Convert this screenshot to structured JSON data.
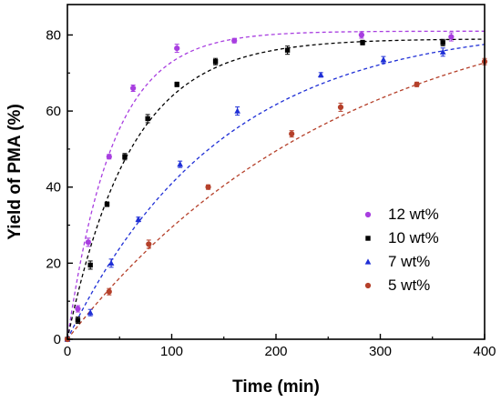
{
  "chart_data": {
    "type": "scatter",
    "xlabel": "Time (min)",
    "ylabel": "Yield of PMA (%)",
    "xlim": [
      0,
      400
    ],
    "ylim": [
      0,
      88
    ],
    "xticks": [
      "0",
      "100",
      "200",
      "300",
      "400"
    ],
    "yticks": [
      "0",
      "20",
      "40",
      "60",
      "80"
    ],
    "grid": false,
    "legend_position": "bottom-right",
    "series": [
      {
        "name": "12 wt%",
        "color": "#a83ee0",
        "marker": "circle",
        "x": [
          0,
          10,
          20,
          40,
          63,
          105,
          160,
          282,
          368
        ],
        "y": [
          0,
          8,
          25.5,
          48,
          66,
          76.5,
          78.5,
          80,
          79.5
        ],
        "fit_plateau": 81,
        "fit_rate": 0.023
      },
      {
        "name": "10 wt%",
        "color": "#000000",
        "marker": "square",
        "x": [
          0,
          10,
          22,
          38,
          55,
          77,
          105,
          142,
          211,
          283,
          360
        ],
        "y": [
          0,
          5,
          19.5,
          35.5,
          48,
          58,
          67,
          73,
          76,
          78,
          78
        ],
        "fit_plateau": 79,
        "fit_rate": 0.0165
      },
      {
        "name": "7 wt%",
        "color": "#1f2fd6",
        "marker": "triangle",
        "x": [
          0,
          22,
          42,
          68,
          108,
          163,
          243,
          303,
          360
        ],
        "y": [
          0,
          7,
          20,
          31.5,
          46,
          60,
          69.5,
          73.5,
          75.5
        ],
        "fit_plateau": 83,
        "fit_rate": 0.0068
      },
      {
        "name": "5 wt%",
        "color": "#b5402a",
        "marker": "circle",
        "x": [
          0,
          40,
          78,
          135,
          215,
          262,
          335,
          400
        ],
        "y": [
          0,
          12.5,
          25,
          40,
          54,
          61,
          67,
          73
        ],
        "fit_plateau": 93,
        "fit_rate": 0.0038
      }
    ]
  }
}
